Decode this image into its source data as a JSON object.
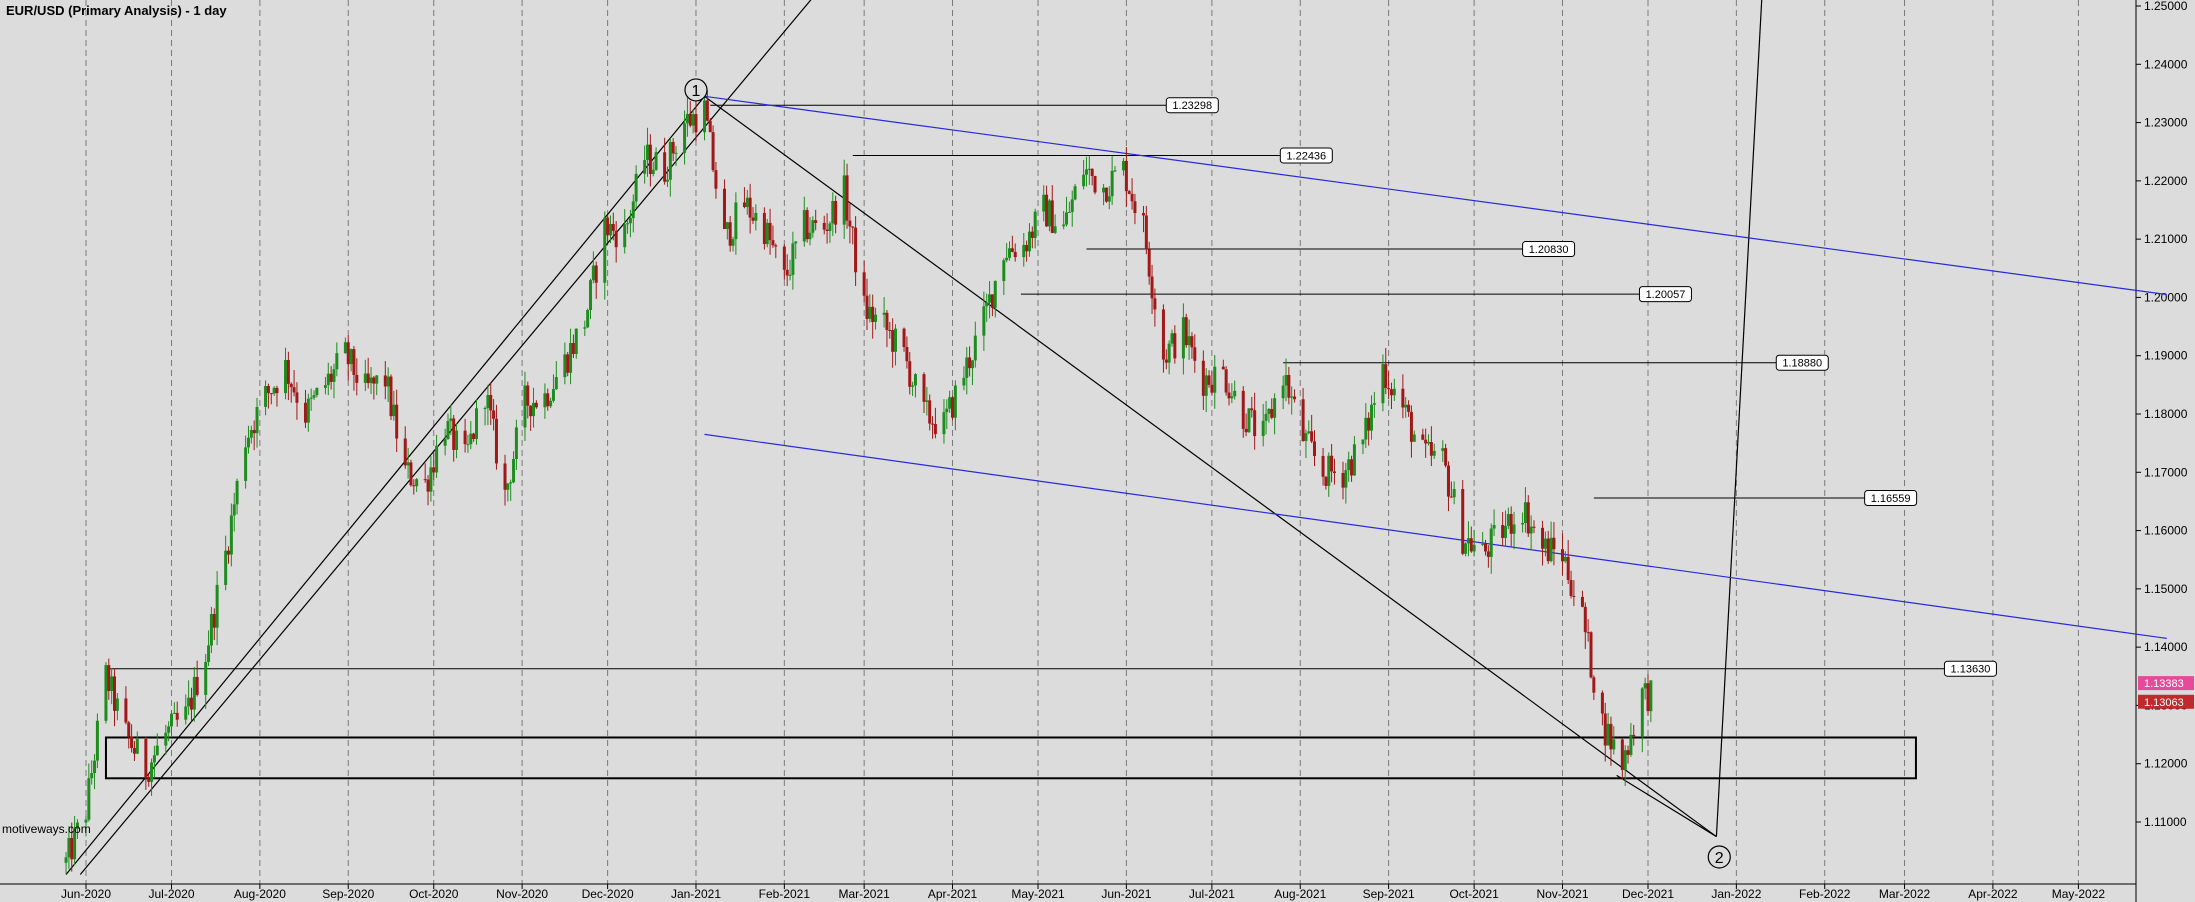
{
  "header": {
    "title": "EUR/USD (Primary Analysis) - 1 day"
  },
  "footer": {
    "watermark": "motiveways.com"
  },
  "colors": {
    "background": "#dcdcdc",
    "grid": "#7a7a7a",
    "up_candle": "#1e8c1e",
    "down_candle": "#a01818",
    "trendline": "#000000",
    "channel": "#2a2ad8",
    "last_price_box": "#e84a9a",
    "prev_price_box": "#c02a2a"
  },
  "chart_data": {
    "type": "candlestick",
    "title": "EUR/USD (Primary Analysis) - 1 day",
    "x_ticks": [
      "Jun-2020",
      "Jul-2020",
      "Aug-2020",
      "Sep-2020",
      "Oct-2020",
      "Nov-2020",
      "Dec-2020",
      "Jan-2021",
      "Feb-2021",
      "Mar-2021",
      "Apr-2021",
      "May-2021",
      "Jun-2021",
      "Jul-2021",
      "Aug-2021",
      "Sep-2021",
      "Oct-2021",
      "Nov-2021",
      "Dec-2021",
      "Jan-2022",
      "Feb-2022",
      "Mar-2022",
      "Apr-2022",
      "May-2022"
    ],
    "y_ticks": [
      "1.25000",
      "1.24000",
      "1.23000",
      "1.22000",
      "1.21000",
      "1.20000",
      "1.19000",
      "1.18000",
      "1.17000",
      "1.16000",
      "1.15000",
      "1.14000",
      "1.13000",
      "1.12000",
      "1.11000"
    ],
    "ylim": [
      1.1,
      1.25
    ],
    "grid": true,
    "price_path": [
      [
        "2020-05-25",
        1.103
      ],
      [
        "2020-06-01",
        1.112
      ],
      [
        "2020-06-08",
        1.135
      ],
      [
        "2020-06-15",
        1.125
      ],
      [
        "2020-06-22",
        1.119
      ],
      [
        "2020-06-29",
        1.125
      ],
      [
        "2020-07-06",
        1.128
      ],
      [
        "2020-07-13",
        1.139
      ],
      [
        "2020-07-20",
        1.156
      ],
      [
        "2020-07-27",
        1.176
      ],
      [
        "2020-08-03",
        1.183
      ],
      [
        "2020-08-10",
        1.188
      ],
      [
        "2020-08-17",
        1.18
      ],
      [
        "2020-08-24",
        1.185
      ],
      [
        "2020-08-31",
        1.19
      ],
      [
        "2020-09-07",
        1.184
      ],
      [
        "2020-09-14",
        1.186
      ],
      [
        "2020-09-21",
        1.17
      ],
      [
        "2020-09-28",
        1.168
      ],
      [
        "2020-10-05",
        1.178
      ],
      [
        "2020-10-12",
        1.172
      ],
      [
        "2020-10-19",
        1.184
      ],
      [
        "2020-10-26",
        1.166
      ],
      [
        "2020-11-02",
        1.182
      ],
      [
        "2020-11-09",
        1.183
      ],
      [
        "2020-11-16",
        1.189
      ],
      [
        "2020-11-23",
        1.196
      ],
      [
        "2020-11-30",
        1.212
      ],
      [
        "2020-12-07",
        1.211
      ],
      [
        "2020-12-14",
        1.224
      ],
      [
        "2020-12-21",
        1.222
      ],
      [
        "2020-12-28",
        1.23
      ],
      [
        "2021-01-04",
        1.232
      ],
      [
        "2021-01-11",
        1.21
      ],
      [
        "2021-01-18",
        1.216
      ],
      [
        "2021-01-25",
        1.212
      ],
      [
        "2021-02-01",
        1.203
      ],
      [
        "2021-02-08",
        1.212
      ],
      [
        "2021-02-15",
        1.212
      ],
      [
        "2021-02-22",
        1.218
      ],
      [
        "2021-03-01",
        1.198
      ],
      [
        "2021-03-08",
        1.195
      ],
      [
        "2021-03-15",
        1.19
      ],
      [
        "2021-03-22",
        1.18
      ],
      [
        "2021-03-29",
        1.178
      ],
      [
        "2021-04-05",
        1.187
      ],
      [
        "2021-04-12",
        1.196
      ],
      [
        "2021-04-19",
        1.208
      ],
      [
        "2021-04-26",
        1.209
      ],
      [
        "2021-05-03",
        1.215
      ],
      [
        "2021-05-10",
        1.212
      ],
      [
        "2021-05-17",
        1.222
      ],
      [
        "2021-05-24",
        1.219
      ],
      [
        "2021-05-31",
        1.222
      ],
      [
        "2021-06-07",
        1.212
      ],
      [
        "2021-06-14",
        1.19
      ],
      [
        "2021-06-21",
        1.194
      ],
      [
        "2021-06-28",
        1.186
      ],
      [
        "2021-07-05",
        1.187
      ],
      [
        "2021-07-12",
        1.18
      ],
      [
        "2021-07-19",
        1.176
      ],
      [
        "2021-07-26",
        1.187
      ],
      [
        "2021-08-02",
        1.176
      ],
      [
        "2021-08-09",
        1.17
      ],
      [
        "2021-08-16",
        1.17
      ],
      [
        "2021-08-23",
        1.175
      ],
      [
        "2021-08-30",
        1.188
      ],
      [
        "2021-09-06",
        1.181
      ],
      [
        "2021-09-13",
        1.173
      ],
      [
        "2021-09-20",
        1.172
      ],
      [
        "2021-09-27",
        1.159
      ],
      [
        "2021-10-04",
        1.156
      ],
      [
        "2021-10-11",
        1.16
      ],
      [
        "2021-10-18",
        1.164
      ],
      [
        "2021-10-25",
        1.157
      ],
      [
        "2021-11-01",
        1.156
      ],
      [
        "2021-11-08",
        1.145
      ],
      [
        "2021-11-15",
        1.127
      ],
      [
        "2021-11-22",
        1.12
      ],
      [
        "2021-11-29",
        1.132
      ]
    ],
    "price_labels": [
      {
        "date": "2021-01-06",
        "value": 1.23298,
        "label": "1.23298",
        "to": "2021-06-15"
      },
      {
        "date": "2021-02-25",
        "value": 1.22436,
        "label": "1.22436",
        "to": "2021-07-25"
      },
      {
        "date": "2021-05-18",
        "value": 1.2083,
        "label": "1.20830",
        "to": "2021-10-18"
      },
      {
        "date": "2021-04-25",
        "value": 1.20057,
        "label": "1.20057",
        "to": "2021-11-28"
      },
      {
        "date": "2021-07-26",
        "value": 1.1888,
        "label": "1.18880",
        "to": "2022-01-15"
      },
      {
        "date": "2021-11-12",
        "value": 1.16559,
        "label": "1.16559",
        "to": "2022-02-15"
      },
      {
        "date": "2020-06-08",
        "value": 1.1363,
        "label": "1.13630",
        "to": "2022-03-15"
      }
    ],
    "current_price": {
      "label": "1.13383",
      "value": 1.13383
    },
    "previous_price": {
      "label": "1.13063",
      "value": 1.13063
    },
    "wave_labels": [
      {
        "label": "1",
        "date": "2021-01-01",
        "value": 1.2356
      },
      {
        "label": "2",
        "date": "2021-12-26",
        "value": 1.104
      }
    ],
    "support_zone": {
      "from": "2020-06-08",
      "to": "2022-03-05",
      "low": 1.1175,
      "high": 1.1245
    },
    "trendlines": [
      {
        "color": "black",
        "from": [
          "2020-05-25",
          1.101
        ],
        "to": [
          "2021-01-04",
          1.2345
        ]
      },
      {
        "color": "black",
        "from": [
          "2020-05-30",
          1.101
        ],
        "to": [
          "2021-03-01",
          1.262
        ]
      },
      {
        "color": "black",
        "from": [
          "2021-01-04",
          1.2345
        ],
        "to": [
          "2021-12-25",
          1.1075
        ]
      },
      {
        "color": "black",
        "from": [
          "2021-11-20",
          1.118
        ],
        "to": [
          "2021-12-25",
          1.1075
        ]
      },
      {
        "color": "black",
        "from": [
          "2021-12-25",
          1.1075
        ],
        "to": [
          "2022-01-10",
          1.252
        ]
      },
      {
        "color": "blue",
        "from": [
          "2021-01-04",
          1.2345
        ],
        "to": [
          "2022-06-01",
          1.2005
        ]
      },
      {
        "color": "blue",
        "from": [
          "2021-01-04",
          1.1765
        ],
        "to": [
          "2022-06-01",
          1.1415
        ]
      }
    ]
  }
}
